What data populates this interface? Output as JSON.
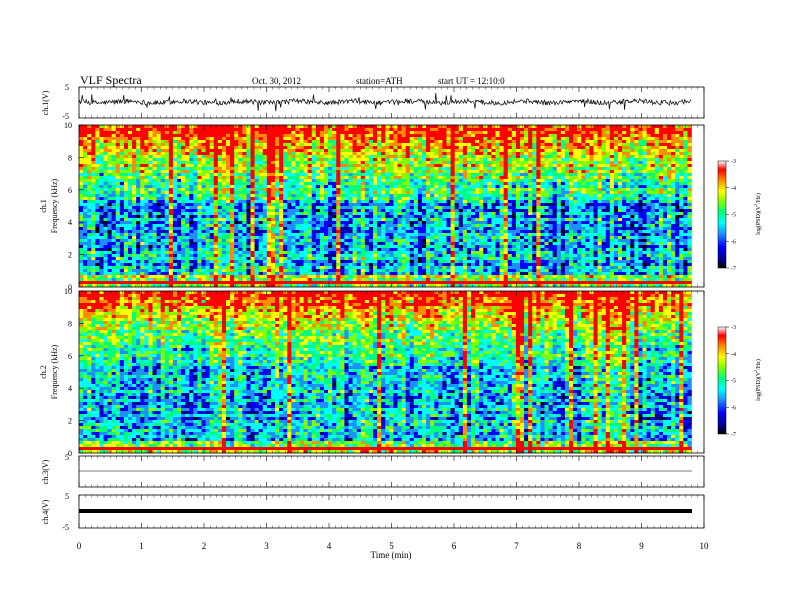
{
  "header": {
    "title": "VLF  Spectra",
    "date": "Oct. 30, 2012",
    "station": "station=ATH",
    "start": "start  UT  =    12:10:0"
  },
  "chart_data": [
    {
      "type": "line",
      "panel": "ch1-waveform",
      "ylabel": "ch.1(V)",
      "ylim": [
        -5,
        5
      ],
      "ytick_labels": [
        "5",
        "-5"
      ],
      "description_of_signal": "noisy waveform with bursts",
      "x_range_min": [
        0,
        9.8
      ]
    },
    {
      "type": "heatmap",
      "panel": "ch1-spectrogram",
      "ylabel": "ch.1\nFrequency  (kHz)",
      "ylabel_line1": "ch.1",
      "ylabel_line2": "Frequency  (kHz)",
      "ylim": [
        0,
        10
      ],
      "yticks": [
        "0",
        "2",
        "4",
        "6",
        "8",
        "10"
      ],
      "colorbar": {
        "label": "log(PSD)(V^2/Hz)",
        "range": [
          -7,
          -3
        ],
        "ticks": [
          "-3",
          "-4",
          "-5",
          "-6",
          "-7"
        ]
      }
    },
    {
      "type": "heatmap",
      "panel": "ch2-spectrogram",
      "ylabel_line1": "ch.2",
      "ylabel_line2": "Frequency  (kHz)",
      "ylim": [
        0,
        10
      ],
      "yticks": [
        "0",
        "2",
        "4",
        "6",
        "8",
        "10"
      ],
      "colorbar": {
        "label": "log(PSD)(V^2/Hz)",
        "range": [
          -7,
          -3
        ],
        "ticks": [
          "-3",
          "-4",
          "-5",
          "-6",
          "-7"
        ]
      }
    },
    {
      "type": "line",
      "panel": "ch3-waveform",
      "ylabel": "ch.3(V)",
      "ylim": [
        -5,
        5
      ],
      "ytick_labels": [
        "5",
        "-5"
      ],
      "level": 0
    },
    {
      "type": "line",
      "panel": "ch4-waveform",
      "ylabel": "ch.4(V)",
      "ylim": [
        -5,
        5
      ],
      "ytick_labels": [
        "5",
        "-5"
      ],
      "level": 0
    }
  ],
  "xaxis": {
    "label": "Time  (min)",
    "range": [
      0,
      10
    ],
    "ticks": [
      "0",
      "1",
      "2",
      "3",
      "4",
      "5",
      "6",
      "7",
      "8",
      "9",
      "10"
    ]
  },
  "colorbar_label_text": "log(PSD)(V",
  "colorbar_label_tail": "/Hz)",
  "colorbar_label_sup": "2",
  "colors": {
    "scale": [
      "#000000",
      "#00008b",
      "#0000ff",
      "#1e90ff",
      "#00ffff",
      "#00ff7f",
      "#7fff00",
      "#ffff00",
      "#ff8c00",
      "#ff0000",
      "#ffffff"
    ]
  }
}
